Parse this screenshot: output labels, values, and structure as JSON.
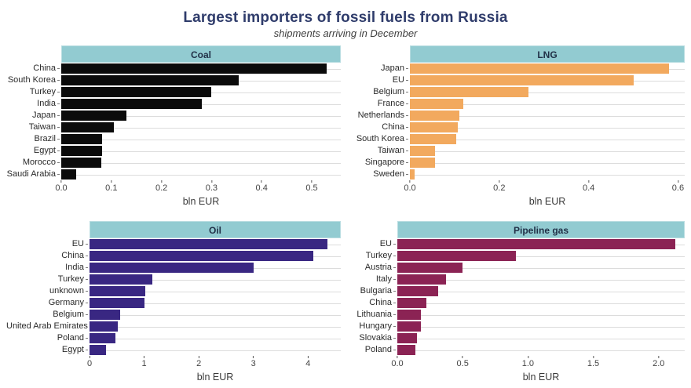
{
  "header": {
    "title": "Largest importers of fossil fuels from Russia",
    "subtitle": "shipments arriving in December"
  },
  "colors": {
    "title_text": "#2f3c6b",
    "panel_header_bg": "#92cbd1",
    "panel_header_text": "#213047",
    "gridline": "#dcdcdc",
    "axis_text": "#444444",
    "coal_bar": "#0b0b0b",
    "lng_bar": "#f2a95e",
    "oil_bar": "#392782",
    "pipeline_gas_bar": "#8b2354"
  },
  "chart_data": [
    {
      "type": "bar",
      "orientation": "horizontal",
      "title": "Coal",
      "xlabel": "bln EUR",
      "bar_color": "#0b0b0b",
      "categories": [
        "China",
        "South Korea",
        "Turkey",
        "India",
        "Japan",
        "Taiwan",
        "Brazil",
        "Egypt",
        "Morocco",
        "Saudi Arabia"
      ],
      "values": [
        0.53,
        0.355,
        0.3,
        0.28,
        0.13,
        0.105,
        0.082,
        0.082,
        0.08,
        0.03
      ],
      "xlim": [
        0,
        0.558
      ],
      "xtick_values": [
        0,
        0.1,
        0.2,
        0.3,
        0.4,
        0.5
      ],
      "xtick_labels": [
        "0.0",
        "0.1",
        "0.2",
        "0.3",
        "0.4",
        "0.5"
      ],
      "grid": "horizontal-major-only",
      "legend": "none"
    },
    {
      "type": "bar",
      "orientation": "horizontal",
      "title": "LNG",
      "xlabel": "bln EUR",
      "bar_color": "#f2a95e",
      "categories": [
        "Japan",
        "EU",
        "Belgium",
        "France",
        "Netherlands",
        "China",
        "South Korea",
        "Taiwan",
        "Singapore",
        "Sweden"
      ],
      "values": [
        0.58,
        0.5,
        0.265,
        0.12,
        0.11,
        0.107,
        0.104,
        0.057,
        0.056,
        0.011
      ],
      "xlim": [
        0,
        0.615
      ],
      "xtick_values": [
        0,
        0.2,
        0.4,
        0.6
      ],
      "xtick_labels": [
        "0.0",
        "0.2",
        "0.4",
        "0.6"
      ],
      "grid": "horizontal-major-only",
      "legend": "none"
    },
    {
      "type": "bar",
      "orientation": "horizontal",
      "title": "Oil",
      "xlabel": "bln EUR",
      "bar_color": "#392782",
      "categories": [
        "EU",
        "China",
        "India",
        "Turkey",
        "unknown",
        "Germany",
        "Belgium",
        "United Arab Emirates",
        "Poland",
        "Egypt"
      ],
      "values": [
        4.35,
        4.1,
        3.0,
        1.15,
        1.02,
        1.0,
        0.56,
        0.52,
        0.47,
        0.3
      ],
      "xlim": [
        0,
        4.6
      ],
      "xtick_values": [
        0,
        1,
        2,
        3,
        4
      ],
      "xtick_labels": [
        "0",
        "1",
        "2",
        "3",
        "4"
      ],
      "grid": "horizontal-major-only",
      "legend": "none"
    },
    {
      "type": "bar",
      "orientation": "horizontal",
      "title": "Pipeline gas",
      "xlabel": "bln EUR",
      "bar_color": "#8b2354",
      "categories": [
        "EU",
        "Turkey",
        "Austria",
        "Italy",
        "Bulgaria",
        "China",
        "Lithuania",
        "Hungary",
        "Slovakia",
        "Poland"
      ],
      "values": [
        2.13,
        0.91,
        0.5,
        0.37,
        0.31,
        0.22,
        0.18,
        0.18,
        0.15,
        0.14
      ],
      "xlim": [
        0,
        2.2
      ],
      "xtick_values": [
        0,
        0.5,
        1.0,
        1.5,
        2.0
      ],
      "xtick_labels": [
        "0.0",
        "0.5",
        "1.0",
        "1.5",
        "2.0"
      ],
      "grid": "horizontal-major-only",
      "legend": "none"
    }
  ]
}
